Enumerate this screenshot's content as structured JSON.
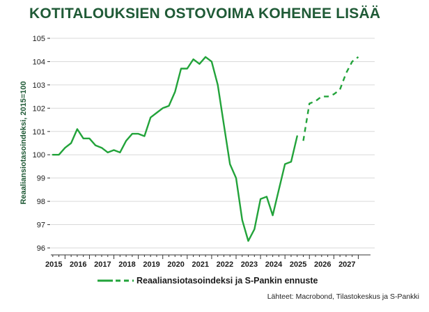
{
  "title": "KOTITALOUKSIEN OSTOVOIMA KOHENEE LISÄÄ",
  "legend_label": "Reaaliansiotasoindeksi ja S-Pankin ennuste",
  "source": "Lähteet: Macrobond, Tilastokeskus ja S-Pankki",
  "colors": {
    "line": "#22a33a",
    "title": "#1f5a36",
    "grid": "#d9d9d9",
    "axis": "#333333"
  },
  "chart_data": {
    "type": "line",
    "title": "KOTITALOUKSIEN OSTOVOIMA KOHENEE LISÄÄ",
    "ylabel": "Reaaliansiotasoindeksi, 2015=100",
    "xlabel": "",
    "ylim": [
      96,
      105
    ],
    "xlim": [
      2014.92,
      2028.0
    ],
    "yticks": [
      96,
      97,
      98,
      99,
      100,
      101,
      102,
      103,
      104,
      105
    ],
    "xticks": [
      "2015",
      "2016",
      "2017",
      "2018",
      "2019",
      "2020",
      "2021",
      "2022",
      "2023",
      "2024",
      "2025",
      "2026",
      "2027"
    ],
    "grid": "horizontal",
    "legend_position": "bottom",
    "series": [
      {
        "name": "Reaaliansiotasoindeksi ja S-Pankin ennuste",
        "style": "solid",
        "x": [
          2015.0,
          2015.25,
          2015.5,
          2015.75,
          2016.0,
          2016.25,
          2016.5,
          2016.75,
          2017.0,
          2017.25,
          2017.5,
          2017.75,
          2018.0,
          2018.25,
          2018.5,
          2018.75,
          2019.0,
          2019.25,
          2019.5,
          2019.75,
          2020.0,
          2020.25,
          2020.5,
          2020.75,
          2021.0,
          2021.25,
          2021.5,
          2021.75,
          2022.0,
          2022.25,
          2022.5,
          2022.75,
          2023.0,
          2023.25,
          2023.5,
          2023.75,
          2024.0,
          2024.25,
          2024.5,
          2024.75,
          2025.0
        ],
        "y": [
          100.0,
          100.0,
          100.3,
          100.5,
          101.1,
          100.7,
          100.7,
          100.4,
          100.3,
          100.1,
          100.2,
          100.1,
          100.6,
          100.9,
          100.9,
          100.8,
          101.6,
          101.8,
          102.0,
          102.1,
          102.7,
          103.7,
          103.7,
          104.1,
          103.9,
          104.2,
          104.0,
          103.0,
          101.3,
          99.6,
          99.0,
          97.2,
          96.3,
          96.8,
          98.1,
          98.2,
          97.4,
          98.5,
          99.6,
          99.7,
          100.8
        ]
      },
      {
        "name": "Reaaliansiotasoindeksi ja S-Pankin ennuste",
        "style": "dashed",
        "x": [
          2025.25,
          2025.5,
          2025.75,
          2026.0,
          2026.25,
          2026.5,
          2026.75,
          2027.0,
          2027.25,
          2027.5
        ],
        "y": [
          100.6,
          102.2,
          102.3,
          102.5,
          102.5,
          102.6,
          102.8,
          103.5,
          104.0,
          104.2
        ]
      }
    ]
  }
}
